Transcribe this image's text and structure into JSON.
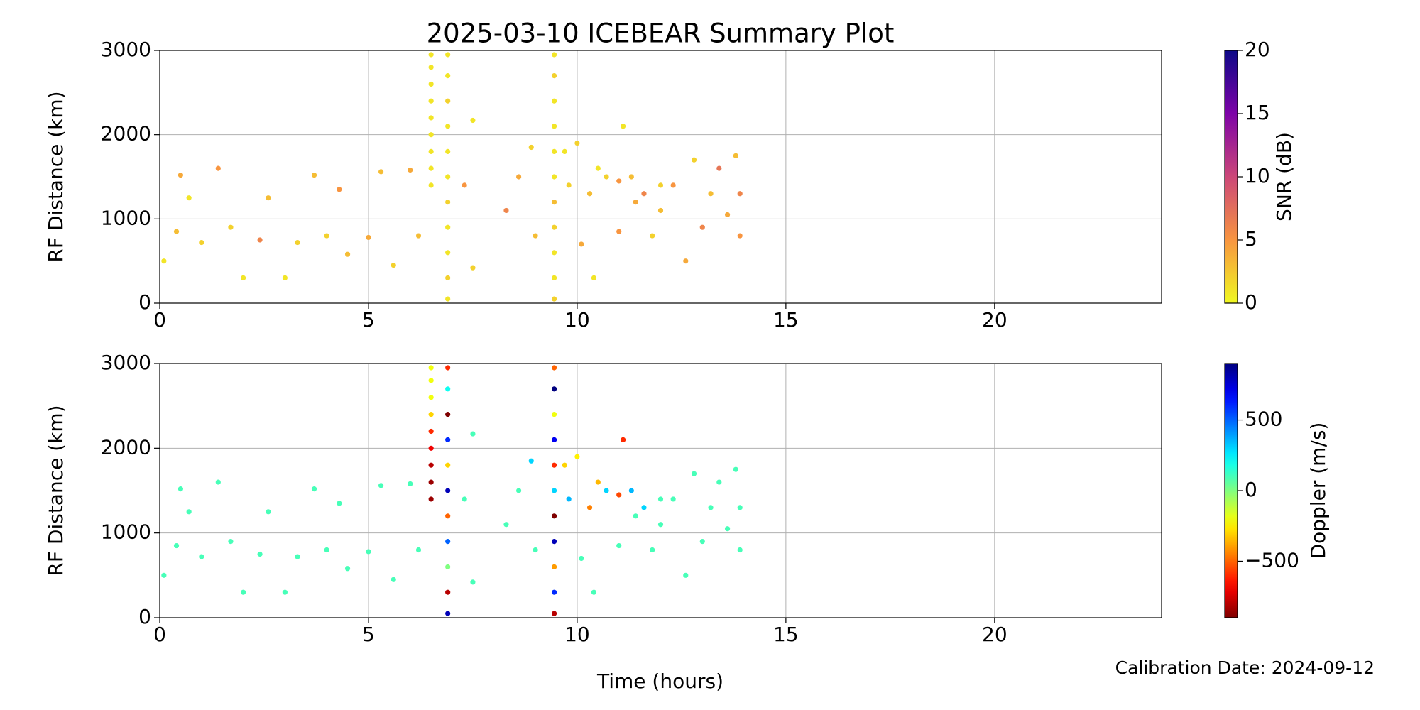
{
  "chart_data": [
    {
      "type": "scatter",
      "title": "2025-03-10 ICEBEAR Summary Plot",
      "ylabel": "RF Distance (km)",
      "x": [
        6.5,
        6.5,
        6.5,
        6.5,
        6.5,
        6.5,
        6.5,
        6.5,
        6.5,
        6.9,
        6.9,
        6.9,
        6.9,
        6.9,
        6.9,
        6.9,
        6.9,
        6.9,
        6.9,
        6.9,
        9.45,
        9.45,
        9.45,
        9.45,
        9.45,
        9.45,
        9.45,
        9.45,
        9.45,
        9.45,
        9.45,
        0.1,
        0.4,
        0.5,
        0.7,
        1.0,
        1.4,
        1.7,
        2.0,
        2.4,
        2.6,
        3.0,
        3.3,
        3.7,
        4.0,
        4.3,
        4.5,
        5.0,
        5.3,
        5.6,
        6.0,
        6.2,
        7.3,
        7.5,
        7.5,
        8.3,
        8.6,
        8.9,
        9.0,
        9.7,
        9.8,
        10.0,
        10.1,
        10.3,
        10.5,
        10.7,
        11.0,
        11.1,
        11.3,
        11.4,
        11.6,
        11.8,
        12.0,
        12.3,
        12.6,
        12.8,
        13.0,
        13.2,
        13.4,
        13.6,
        13.8,
        13.9,
        13.9,
        10.4,
        11.0,
        12.0
      ],
      "y": [
        1400,
        1600,
        1800,
        2000,
        2200,
        2400,
        2600,
        2800,
        2950,
        50,
        300,
        600,
        900,
        1200,
        1500,
        1800,
        2100,
        2400,
        2700,
        2950,
        50,
        300,
        600,
        900,
        1200,
        1500,
        1800,
        2100,
        2400,
        2700,
        2950,
        500,
        850,
        1520,
        1250,
        720,
        1600,
        900,
        300,
        750,
        1250,
        300,
        720,
        1520,
        800,
        1350,
        580,
        780,
        1560,
        450,
        1580,
        800,
        1400,
        2170,
        420,
        1100,
        1500,
        1850,
        800,
        1800,
        1400,
        1900,
        700,
        1300,
        1600,
        1500,
        1450,
        2100,
        1500,
        1200,
        1300,
        800,
        1100,
        1400,
        500,
        1700,
        900,
        1300,
        1600,
        1050,
        1750,
        800,
        1300,
        300,
        850,
        1400
      ],
      "c": [
        1,
        1,
        1,
        1,
        1,
        1,
        1,
        1,
        1,
        1,
        2,
        1,
        1,
        2,
        1,
        1,
        1,
        2,
        1,
        1,
        2,
        1,
        1,
        2,
        3,
        1,
        1,
        1,
        1,
        2,
        1,
        1,
        3,
        4,
        1,
        2,
        5,
        2,
        1,
        6,
        3,
        1,
        2,
        3,
        2,
        5,
        3,
        4,
        3,
        2,
        4,
        3,
        5,
        1,
        2,
        6,
        4,
        2,
        3,
        1,
        2,
        2,
        4,
        3,
        1,
        2,
        5,
        1,
        3,
        4,
        6,
        2,
        3,
        5,
        4,
        2,
        6,
        3,
        7,
        4,
        3,
        5,
        6,
        1,
        5,
        2
      ],
      "colorbar": {
        "label": "SNR (dB)",
        "colormap": "plasma_r",
        "lim": [
          0,
          20
        ],
        "ticks": [
          0,
          5,
          10,
          15,
          20
        ]
      },
      "xlim": [
        0,
        24
      ],
      "xticks": [
        0,
        5,
        10,
        15,
        20
      ],
      "ylim": [
        0,
        3000
      ],
      "yticks": [
        0,
        1000,
        2000,
        3000
      ],
      "grid": true
    },
    {
      "type": "scatter",
      "ylabel": "RF Distance (km)",
      "xlabel": "Time (hours)",
      "annotation": "Calibration Date: 2024-09-12",
      "x": [
        6.5,
        6.5,
        6.5,
        6.5,
        6.5,
        6.5,
        6.5,
        6.5,
        6.5,
        6.9,
        6.9,
        6.9,
        6.9,
        6.9,
        6.9,
        6.9,
        6.9,
        6.9,
        6.9,
        6.9,
        9.45,
        9.45,
        9.45,
        9.45,
        9.45,
        9.45,
        9.45,
        9.45,
        9.45,
        9.45,
        9.45,
        0.1,
        0.4,
        0.5,
        0.7,
        1.0,
        1.4,
        1.7,
        2.0,
        2.4,
        2.6,
        3.0,
        3.3,
        3.7,
        4.0,
        4.3,
        4.5,
        5.0,
        5.3,
        5.6,
        6.0,
        6.2,
        7.3,
        7.5,
        7.5,
        8.3,
        8.6,
        8.9,
        9.0,
        9.7,
        9.8,
        10.0,
        10.1,
        10.3,
        10.5,
        10.7,
        11.0,
        11.1,
        11.3,
        11.4,
        11.6,
        11.8,
        12.0,
        12.3,
        12.6,
        12.8,
        13.0,
        13.2,
        13.4,
        13.6,
        13.8,
        13.9,
        13.9,
        10.4,
        11.0,
        12.0
      ],
      "y": [
        1400,
        1600,
        1800,
        2000,
        2200,
        2400,
        2600,
        2800,
        2950,
        50,
        300,
        600,
        900,
        1200,
        1500,
        1800,
        2100,
        2400,
        2700,
        2950,
        50,
        300,
        600,
        900,
        1200,
        1500,
        1800,
        2100,
        2400,
        2700,
        2950,
        500,
        850,
        1520,
        1250,
        720,
        1600,
        900,
        300,
        750,
        1250,
        300,
        720,
        1520,
        800,
        1350,
        580,
        780,
        1560,
        450,
        1580,
        800,
        1400,
        2170,
        420,
        1100,
        1500,
        1850,
        800,
        1800,
        1400,
        1900,
        700,
        1300,
        1600,
        1500,
        1450,
        2100,
        1500,
        1200,
        1300,
        800,
        1100,
        1400,
        500,
        1700,
        900,
        1300,
        1600,
        1050,
        1750,
        800,
        1300,
        300,
        850,
        1400
      ],
      "c": [
        -850,
        -850,
        -800,
        -700,
        -600,
        -300,
        -200,
        -200,
        -200,
        800,
        -800,
        0,
        500,
        -500,
        800,
        -300,
        600,
        -900,
        200,
        -600,
        -800,
        600,
        -400,
        800,
        -900,
        300,
        -600,
        700,
        -200,
        900,
        -500,
        100,
        100,
        100,
        100,
        100,
        100,
        100,
        100,
        100,
        100,
        100,
        100,
        100,
        100,
        100,
        100,
        100,
        100,
        100,
        100,
        100,
        100,
        100,
        100,
        100,
        100,
        300,
        100,
        -300,
        350,
        -250,
        100,
        -450,
        -350,
        300,
        -550,
        -600,
        350,
        100,
        300,
        100,
        100,
        100,
        100,
        100,
        100,
        100,
        100,
        100,
        100,
        100,
        100,
        100,
        100,
        100
      ],
      "colorbar": {
        "label": "Doppler (m/s)",
        "colormap": "jet_r",
        "lim": [
          -900,
          900
        ],
        "ticks": [
          {
            "value": -500,
            "label": "−500"
          },
          0,
          500
        ]
      },
      "xlim": [
        0,
        24
      ],
      "xticks": [
        0,
        5,
        10,
        15,
        20
      ],
      "ylim": [
        0,
        3000
      ],
      "yticks": [
        0,
        1000,
        2000,
        3000
      ],
      "grid": true
    }
  ]
}
